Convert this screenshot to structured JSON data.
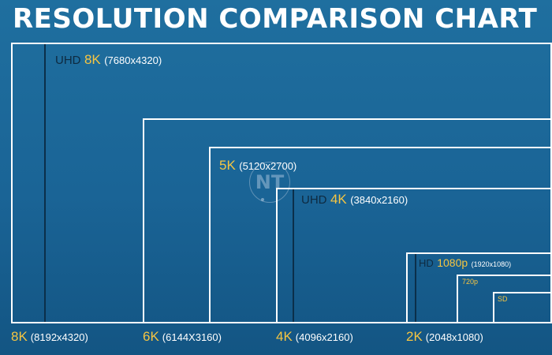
{
  "title": "RESOLUTION COMPARISON CHART",
  "watermark": "NT",
  "boxes": [
    {
      "prefix": "UHD",
      "name": "8K",
      "res": "(7680x4320)"
    },
    {
      "prefix": "",
      "name": "5K",
      "res": "(5120x2700)"
    },
    {
      "prefix": "UHD",
      "name": "4K",
      "res": "(3840x2160)"
    },
    {
      "prefix": "HD",
      "name": "1080p",
      "res": "(1920x1080)"
    },
    {
      "prefix": "",
      "name": "",
      "res": "720p"
    },
    {
      "prefix": "",
      "name": "",
      "res": "SD"
    }
  ],
  "bottom_labels": [
    {
      "name": "8K",
      "res": "(8192x4320)"
    },
    {
      "name": "6K",
      "res": "(6144X3160)"
    },
    {
      "name": "4K",
      "res": "(4096x2160)"
    },
    {
      "name": "2K",
      "res": "(2048x1080)"
    }
  ],
  "colors": {
    "background": "#1a6496",
    "accent": "#f5c542",
    "inner_text": "#0e2a40",
    "outline": "#ffffff"
  }
}
